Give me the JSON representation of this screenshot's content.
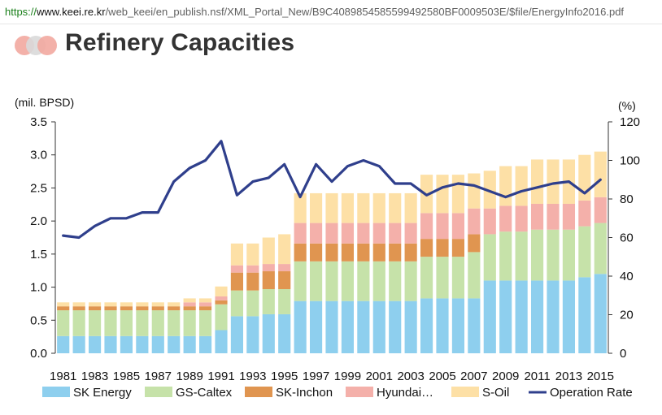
{
  "browser": {
    "url_scheme": "https://",
    "url_host": "www.keei.re.kr",
    "url_path": "/web_keei/en_publish.nsf/XML_Portal_New/B9C4089854585599492580BF0009503E/$file/EnergyInfo2016.pdf"
  },
  "page": {
    "title": "Refinery Capacities"
  },
  "chart_data": {
    "type": "bar",
    "stacked": true,
    "categories": [
      "1981",
      "1982",
      "1983",
      "1984",
      "1985",
      "1986",
      "1987",
      "1988",
      "1989",
      "1990",
      "1991",
      "1992",
      "1993",
      "1994",
      "1995",
      "1996",
      "1997",
      "1998",
      "1999",
      "2000",
      "2001",
      "2002",
      "2003",
      "2004",
      "2005",
      "2006",
      "2007",
      "2008",
      "2009",
      "2010",
      "2011",
      "2012",
      "2013",
      "2014",
      "2015"
    ],
    "x_tick_labels": [
      "1981",
      "",
      "1983",
      "",
      "1985",
      "",
      "1987",
      "",
      "1989",
      "",
      "1991",
      "",
      "1993",
      "",
      "1995",
      "",
      "1997",
      "",
      "1999",
      "",
      "2001",
      "",
      "2003",
      "",
      "2005",
      "",
      "2007",
      "",
      "2009",
      "",
      "2011",
      "",
      "2013",
      "",
      "2015"
    ],
    "ylabel_left": "(mil. BPSD)",
    "ylabel_right": "(%)",
    "ylim_left": [
      0,
      3.5
    ],
    "ylim_right": [
      0,
      120
    ],
    "yticks_left": [
      "0.0",
      "0.5",
      "1.0",
      "1.5",
      "2.0",
      "2.5",
      "3.0",
      "3.5"
    ],
    "yticks_right": [
      "0",
      "20",
      "40",
      "60",
      "80",
      "100",
      "120"
    ],
    "legend_position": "bottom",
    "series": [
      {
        "name": "SK Energy",
        "color": "#8ecfee",
        "values": [
          0.26,
          0.26,
          0.26,
          0.26,
          0.26,
          0.26,
          0.26,
          0.26,
          0.26,
          0.26,
          0.35,
          0.56,
          0.56,
          0.59,
          0.59,
          0.79,
          0.79,
          0.79,
          0.79,
          0.79,
          0.79,
          0.79,
          0.79,
          0.83,
          0.83,
          0.83,
          0.83,
          1.1,
          1.1,
          1.1,
          1.1,
          1.1,
          1.1,
          1.15,
          1.2
        ]
      },
      {
        "name": "GS-Caltex",
        "color": "#c6e2a9",
        "values": [
          0.39,
          0.39,
          0.39,
          0.39,
          0.39,
          0.39,
          0.39,
          0.39,
          0.39,
          0.39,
          0.39,
          0.39,
          0.39,
          0.38,
          0.38,
          0.6,
          0.6,
          0.6,
          0.6,
          0.6,
          0.6,
          0.6,
          0.6,
          0.63,
          0.63,
          0.63,
          0.7,
          0.7,
          0.74,
          0.74,
          0.77,
          0.77,
          0.77,
          0.77,
          0.77
        ]
      },
      {
        "name": "SK-Inchon",
        "color": "#e09550",
        "values": [
          0.06,
          0.06,
          0.06,
          0.06,
          0.06,
          0.06,
          0.06,
          0.06,
          0.06,
          0.06,
          0.06,
          0.27,
          0.27,
          0.27,
          0.27,
          0.27,
          0.27,
          0.27,
          0.27,
          0.27,
          0.27,
          0.27,
          0.27,
          0.27,
          0.27,
          0.27,
          0.27,
          0,
          0,
          0,
          0,
          0,
          0,
          0,
          0
        ]
      },
      {
        "name": "Hyundai…",
        "color": "#f4b0aa",
        "values": [
          0,
          0,
          0,
          0,
          0,
          0,
          0,
          0,
          0.06,
          0.06,
          0.06,
          0.11,
          0.11,
          0.11,
          0.11,
          0.31,
          0.31,
          0.31,
          0.31,
          0.31,
          0.31,
          0.31,
          0.31,
          0.39,
          0.39,
          0.39,
          0.39,
          0.39,
          0.39,
          0.39,
          0.39,
          0.39,
          0.39,
          0.39,
          0.39
        ]
      },
      {
        "name": "S-Oil",
        "color": "#fde0a6",
        "values": [
          0.06,
          0.06,
          0.06,
          0.06,
          0.06,
          0.06,
          0.06,
          0.06,
          0.06,
          0.06,
          0.15,
          0.33,
          0.33,
          0.4,
          0.45,
          0.45,
          0.45,
          0.45,
          0.45,
          0.45,
          0.45,
          0.45,
          0.45,
          0.58,
          0.58,
          0.58,
          0.53,
          0.57,
          0.6,
          0.6,
          0.67,
          0.67,
          0.67,
          0.69,
          0.69
        ]
      }
    ],
    "line_series": {
      "name": "Operation Rate",
      "color": "#2f3f8c",
      "axis": "right",
      "values": [
        61,
        60,
        66,
        70,
        70,
        73,
        73,
        89,
        96,
        100,
        110,
        82,
        89,
        91,
        98,
        81,
        98,
        89,
        97,
        100,
        97,
        88,
        88,
        82,
        86,
        88,
        87,
        84,
        81,
        84,
        86,
        88,
        89,
        83,
        90
      ]
    }
  }
}
